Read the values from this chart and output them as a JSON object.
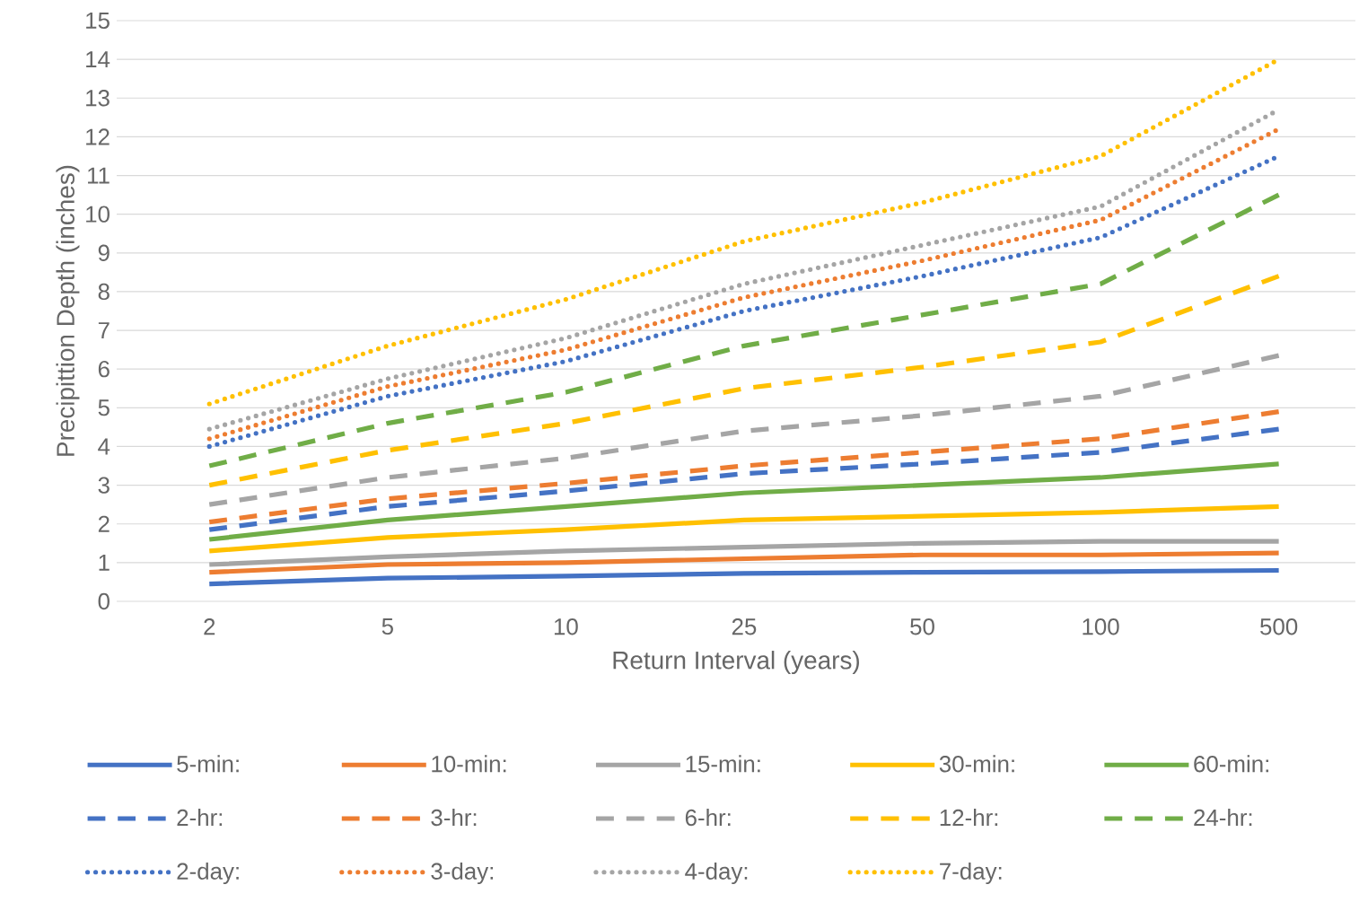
{
  "chart_data": {
    "type": "line",
    "xlabel": "Return Interval (years)",
    "ylabel": "Precipittion Depth (inches)",
    "categories": [
      "2",
      "5",
      "10",
      "25",
      "50",
      "100",
      "500"
    ],
    "ylim": [
      0,
      15
    ],
    "yticks": [
      0,
      1,
      2,
      3,
      4,
      5,
      6,
      7,
      8,
      9,
      10,
      11,
      12,
      13,
      14,
      15
    ],
    "grid": "y",
    "legend": "bottom",
    "series": [
      {
        "name": "5-min:",
        "color": "#4472c4",
        "line_style": "solid",
        "values": [
          0.45,
          0.6,
          0.65,
          0.72,
          0.75,
          0.77,
          0.8
        ]
      },
      {
        "name": "10-min:",
        "color": "#ed7d31",
        "line_style": "solid",
        "values": [
          0.75,
          0.95,
          1.0,
          1.1,
          1.2,
          1.2,
          1.25
        ]
      },
      {
        "name": "15-min:",
        "color": "#a5a5a5",
        "line_style": "solid",
        "values": [
          0.95,
          1.15,
          1.3,
          1.4,
          1.5,
          1.55,
          1.55
        ]
      },
      {
        "name": "30-min:",
        "color": "#ffc000",
        "line_style": "solid",
        "values": [
          1.3,
          1.65,
          1.85,
          2.1,
          2.2,
          2.3,
          2.45
        ]
      },
      {
        "name": "60-min:",
        "color": "#70ad47",
        "line_style": "solid",
        "values": [
          1.6,
          2.1,
          2.45,
          2.8,
          3.0,
          3.2,
          3.55
        ]
      },
      {
        "name": "2-hr:",
        "color": "#4472c4",
        "line_style": "dashed",
        "values": [
          1.85,
          2.45,
          2.85,
          3.3,
          3.55,
          3.85,
          4.45
        ]
      },
      {
        "name": "3-hr:",
        "color": "#ed7d31",
        "line_style": "dashed",
        "values": [
          2.05,
          2.65,
          3.05,
          3.5,
          3.85,
          4.2,
          4.9
        ]
      },
      {
        "name": "6-hr:",
        "color": "#a5a5a5",
        "line_style": "dashed",
        "values": [
          2.5,
          3.2,
          3.7,
          4.4,
          4.8,
          5.3,
          6.35
        ]
      },
      {
        "name": "12-hr:",
        "color": "#ffc000",
        "line_style": "dashed",
        "values": [
          3.0,
          3.9,
          4.6,
          5.5,
          6.05,
          6.7,
          8.4
        ]
      },
      {
        "name": "24-hr:",
        "color": "#70ad47",
        "line_style": "dashed",
        "values": [
          3.5,
          4.6,
          5.4,
          6.6,
          7.4,
          8.2,
          10.5
        ]
      },
      {
        "name": "2-day:",
        "color": "#4472c4",
        "line_style": "dotted",
        "values": [
          4.0,
          5.3,
          6.2,
          7.5,
          8.4,
          9.4,
          11.5
        ]
      },
      {
        "name": "3-day:",
        "color": "#ed7d31",
        "line_style": "dotted",
        "values": [
          4.2,
          5.55,
          6.5,
          7.85,
          8.8,
          9.85,
          12.2
        ]
      },
      {
        "name": "4-day:",
        "color": "#a5a5a5",
        "line_style": "dotted",
        "values": [
          4.45,
          5.75,
          6.8,
          8.2,
          9.2,
          10.2,
          12.7
        ]
      },
      {
        "name": "7-day:",
        "color": "#ffc000",
        "line_style": "dotted",
        "values": [
          5.1,
          6.6,
          7.8,
          9.3,
          10.3,
          11.5,
          14.0
        ]
      }
    ]
  }
}
